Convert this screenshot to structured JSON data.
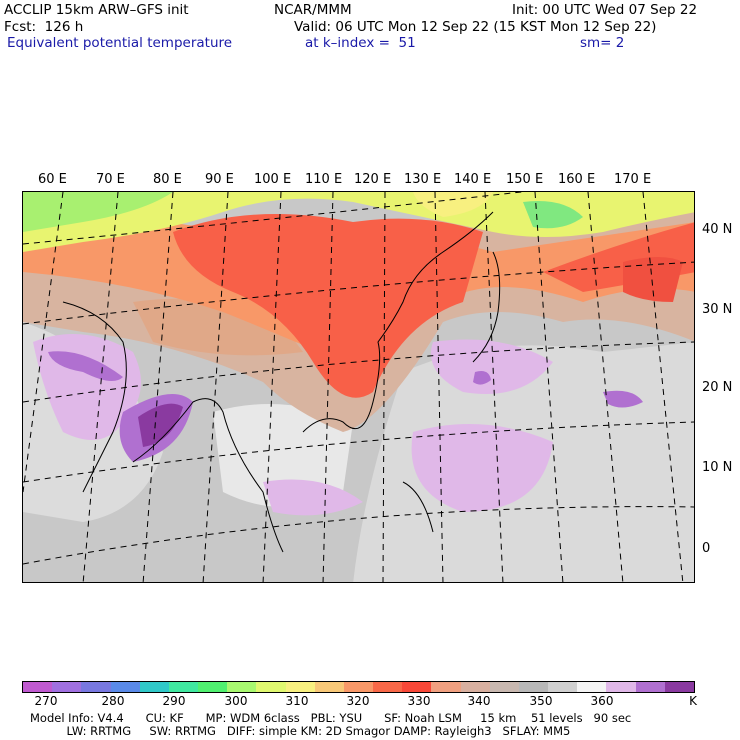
{
  "header": {
    "model": "ACCLIP 15km ARW–GFS init",
    "org": "NCAR/MMM",
    "init": "Init: 00 UTC Wed 07 Sep 22",
    "fcst": "Fcst:  126 h",
    "valid": "Valid: 06 UTC Mon 12 Sep 22 (15 KST Mon 12 Sep 22)",
    "field": "Equivalent potential temperature",
    "level": "at k–index =  51",
    "smooth": "sm= 2"
  },
  "map": {
    "lon_labels": [
      "60 E",
      "70 E",
      "80 E",
      "90 E",
      "100 E",
      "110 E",
      "120 E",
      "130 E",
      "140 E",
      "150 E",
      "160 E",
      "170 E"
    ],
    "lat_labels": [
      "40 N",
      "30 N",
      "20 N",
      "10 N",
      "0"
    ]
  },
  "colorbar": {
    "colors": [
      "#c05ad0",
      "#a070e0",
      "#7878e0",
      "#5a8ae8",
      "#30c8c8",
      "#40e8a0",
      "#50f070",
      "#a8f870",
      "#e0f870",
      "#f8f080",
      "#f8c878",
      "#f89868",
      "#f86848",
      "#f84838",
      "#f0a080",
      "#d8b0a0",
      "#c8b8b0",
      "#b8b8b8",
      "#d0d0d0",
      "#f4f4f4",
      "#e0b8e8",
      "#b070d0",
      "#8a3aa0"
    ],
    "ticks": [
      "270",
      "280",
      "290",
      "300",
      "310",
      "320",
      "330",
      "340",
      "350",
      "360"
    ],
    "unit": "K"
  },
  "footer": {
    "line1": "Model Info: V4.4      CU: KF      MP: WDM 6class   PBL: YSU      SF: Noah LSM     15 km    51 levels   90 sec",
    "line2": "          LW: RRTMG     SW: RRTMG   DIFF: simple KM: 2D Smagor DAMP: Rayleigh3   SFLAY: MM5"
  }
}
